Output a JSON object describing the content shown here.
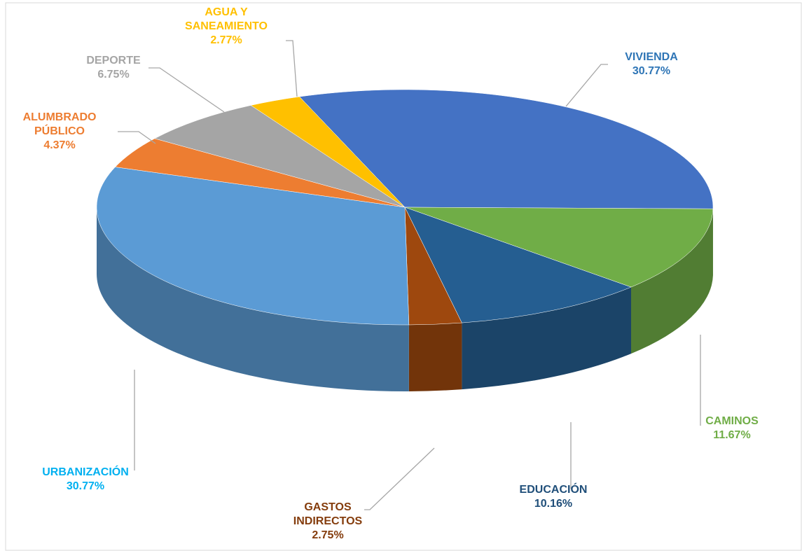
{
  "chart_data": {
    "type": "pie3d",
    "categories": [
      "VIVIENDA",
      "CAMINOS",
      "EDUCACIÓN",
      "GASTOS INDIRECTOS",
      "URBANIZACIÓN",
      "ALUMBRADO PÚBLICO",
      "DEPORTE",
      "AGUA Y SANEAMIENTO"
    ],
    "values": [
      30.77,
      11.67,
      10.16,
      2.75,
      30.77,
      4.37,
      6.75,
      2.77
    ],
    "value_labels": [
      "30.77%",
      "11.67%",
      "10.16%",
      "2.75%",
      "30.77%",
      "4.37%",
      "6.75%",
      "2.77%"
    ],
    "colors": [
      "#4472c4",
      "#70ad47",
      "#255e91",
      "#9e480e",
      "#5b9bd5",
      "#ed7d31",
      "#a5a5a5",
      "#ffc000"
    ],
    "label_colors": [
      "#2e75b6",
      "#70ad47",
      "#1f4e79",
      "#843c0c",
      "#00b0f0",
      "#ed7d31",
      "#a5a5a5",
      "#ffc000"
    ]
  }
}
